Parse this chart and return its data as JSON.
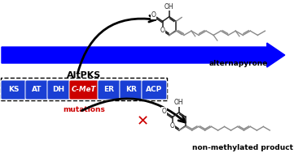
{
  "bg_color": "#ffffff",
  "domains": [
    "KS",
    "AT",
    "DH",
    "C-MeT",
    "ER",
    "KR",
    "ACP"
  ],
  "domain_colors": [
    "#1a3fd4",
    "#1a3fd4",
    "#1a3fd4",
    "#cc0000",
    "#1a3fd4",
    "#1a3fd4",
    "#1a3fd4"
  ],
  "altpks_label": "AltPKS",
  "mutations_label": "mutations",
  "alternapyrone_label": "alternapyrone",
  "non_methylated_label": "non-methylated product",
  "blue": "#0000ff",
  "black": "#000000",
  "red": "#cc0000",
  "white": "#ffffff"
}
